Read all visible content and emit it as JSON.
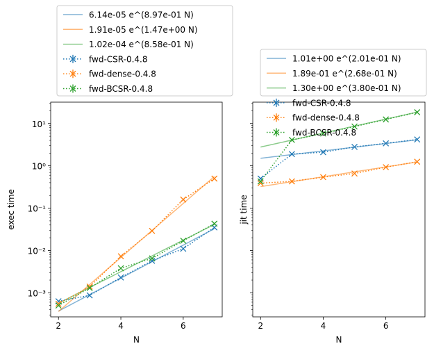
{
  "chart_data": [
    {
      "type": "line",
      "xlabel": "N",
      "ylabel": "exec time",
      "yscale": "log",
      "xlim": [
        1.75,
        7.25
      ],
      "ylim": [
        0.00027,
        32
      ],
      "x_ticks": [
        2,
        4,
        6
      ],
      "x_tick_labels": [
        "2",
        "4",
        "6"
      ],
      "y_ticks": [
        0.001,
        0.01,
        0.1,
        1,
        10
      ],
      "y_tick_labels": [
        "10⁻³",
        "10⁻²",
        "10⁻¹",
        "10⁰",
        "10¹"
      ],
      "legend_position": "above",
      "series": [
        {
          "name": "6.14e-05 e^(8.97e-01 N)",
          "style": "fit",
          "color": "#1f77b4",
          "a": 6.14e-05,
          "b": 0.897
        },
        {
          "name": "1.91e-05 e^(1.47e+00 N)",
          "style": "fit",
          "color": "#ff7f0e",
          "a": 1.91e-05,
          "b": 1.47
        },
        {
          "name": "1.02e-04 e^(8.58e-01 N)",
          "style": "fit",
          "color": "#2ca02c",
          "a": 0.000102,
          "b": 0.858
        },
        {
          "name": "fwd-CSR-0.4.8",
          "style": "measured",
          "color": "#1f77b4",
          "x": [
            2,
            3,
            4,
            5,
            6,
            7
          ],
          "y": [
            0.00063,
            0.00087,
            0.0023,
            0.0057,
            0.011,
            0.035
          ]
        },
        {
          "name": "fwd-dense-0.4.8",
          "style": "measured",
          "color": "#ff7f0e",
          "x": [
            2,
            3,
            4,
            5,
            6,
            7
          ],
          "y": [
            0.00055,
            0.0014,
            0.0073,
            0.029,
            0.16,
            0.5
          ]
        },
        {
          "name": "fwd-BCSR-0.4.8",
          "style": "measured",
          "color": "#2ca02c",
          "x": [
            2,
            3,
            4,
            5,
            6,
            7
          ],
          "y": [
            0.0005,
            0.0013,
            0.0038,
            0.0065,
            0.017,
            0.043
          ]
        }
      ]
    },
    {
      "type": "line",
      "xlabel": "N",
      "ylabel": "jit time",
      "yscale": "log",
      "xlim": [
        1.75,
        7.25
      ],
      "ylim": [
        0.00027,
        32
      ],
      "x_ticks": [
        2,
        4,
        6
      ],
      "x_tick_labels": [
        "2",
        "4",
        "6"
      ],
      "legend_position": "above",
      "series": [
        {
          "name": "1.01e+00 e^(2.01e-01 N)",
          "style": "fit",
          "color": "#1f77b4",
          "a": 1.01,
          "b": 0.201
        },
        {
          "name": "1.89e-01 e^(2.68e-01 N)",
          "style": "fit",
          "color": "#ff7f0e",
          "a": 0.189,
          "b": 0.268
        },
        {
          "name": "1.30e+00 e^(3.80e-01 N)",
          "style": "fit",
          "color": "#2ca02c",
          "a": 1.3,
          "b": 0.38
        },
        {
          "name": "fwd-CSR-0.4.8",
          "style": "measured",
          "color": "#1f77b4",
          "x": [
            2,
            3,
            4,
            5,
            6,
            7
          ],
          "y": [
            0.5,
            1.9,
            2.1,
            2.8,
            3.4,
            4.2
          ]
        },
        {
          "name": "fwd-dense-0.4.8",
          "style": "measured",
          "color": "#ff7f0e",
          "x": [
            2,
            3,
            4,
            5,
            6,
            7
          ],
          "y": [
            0.39,
            0.43,
            0.54,
            0.66,
            0.93,
            1.25
          ]
        },
        {
          "name": "fwd-BCSR-0.4.8",
          "style": "measured",
          "color": "#2ca02c",
          "x": [
            2,
            3,
            4,
            5,
            6,
            7
          ],
          "y": [
            0.43,
            4.1,
            5.8,
            8.5,
            12.5,
            18.5
          ]
        }
      ]
    }
  ]
}
